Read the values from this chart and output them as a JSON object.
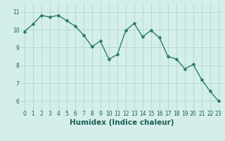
{
  "title": "",
  "xlabel": "Humidex (Indice chaleur)",
  "ylabel": "",
  "x": [
    0,
    1,
    2,
    3,
    4,
    5,
    6,
    7,
    8,
    9,
    10,
    11,
    12,
    13,
    14,
    15,
    16,
    17,
    18,
    19,
    20,
    21,
    22,
    23
  ],
  "y": [
    9.9,
    10.3,
    10.8,
    10.7,
    10.8,
    10.5,
    10.2,
    9.7,
    9.05,
    9.35,
    8.35,
    8.6,
    9.95,
    10.35,
    9.6,
    9.95,
    9.55,
    8.5,
    8.35,
    7.8,
    8.05,
    7.2,
    6.55,
    6.0
  ],
  "line_color": "#2e7d6e",
  "marker": "D",
  "marker_size": 2.0,
  "bg_color": "#d4efeb",
  "grid_color": "#b8d8d2",
  "axes_bg": "#d4efeb",
  "ylim": [
    5.5,
    11.5
  ],
  "xlim": [
    -0.5,
    23.5
  ],
  "yticks": [
    6,
    7,
    8,
    9,
    10,
    11
  ],
  "xticks": [
    0,
    1,
    2,
    3,
    4,
    5,
    6,
    7,
    8,
    9,
    10,
    11,
    12,
    13,
    14,
    15,
    16,
    17,
    18,
    19,
    20,
    21,
    22,
    23
  ],
  "tick_fontsize": 5.5,
  "xlabel_fontsize": 7.5,
  "linewidth": 1.0
}
